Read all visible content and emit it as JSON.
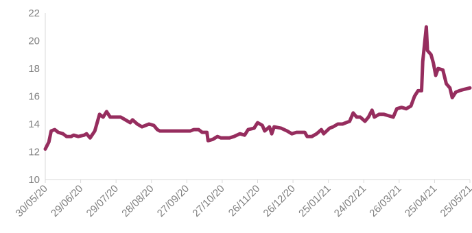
{
  "chart_data": {
    "type": "line",
    "x": [
      "30/05/20",
      "02/06/20",
      "04/06/20",
      "07/06/20",
      "10/06/20",
      "14/06/20",
      "17/06/20",
      "21/06/20",
      "23/06/20",
      "27/06/20",
      "02/07/20",
      "04/07/20",
      "07/07/20",
      "11/07/20",
      "15/07/20",
      "18/07/20",
      "21/07/20",
      "24/07/20",
      "28/07/20",
      "02/08/20",
      "06/08/20",
      "10/08/20",
      "12/08/20",
      "16/08/20",
      "20/08/20",
      "23/08/20",
      "26/08/20",
      "30/08/20",
      "02/09/20",
      "04/09/20",
      "20/09/20",
      "30/09/20",
      "03/10/20",
      "07/10/20",
      "10/10/20",
      "14/10/20",
      "15/10/20",
      "19/10/20",
      "23/10/20",
      "26/10/20",
      "02/11/20",
      "06/11/20",
      "11/11/20",
      "15/11/20",
      "18/11/20",
      "23/11/20",
      "26/11/20",
      "30/11/20",
      "02/12/20",
      "06/12/20",
      "08/12/20",
      "10/12/20",
      "16/12/20",
      "21/12/20",
      "25/12/20",
      "29/12/20",
      "05/01/21",
      "07/01/21",
      "11/01/21",
      "15/01/21",
      "19/01/21",
      "21/01/21",
      "26/01/21",
      "29/01/21",
      "02/02/21",
      "06/02/21",
      "12/02/21",
      "15/02/21",
      "18/02/21",
      "21/02/21",
      "25/02/21",
      "28/02/21",
      "03/03/21",
      "05/03/21",
      "09/03/21",
      "13/03/21",
      "17/03/21",
      "21/03/21",
      "24/03/21",
      "28/03/21",
      "01/04/21",
      "05/04/21",
      "08/04/21",
      "11/04/21",
      "14/04/21",
      "15/04/21",
      "18/04/21",
      "19/04/21",
      "22/04/21",
      "24/04/21",
      "26/04/21",
      "28/04/21",
      "02/05/21",
      "05/05/21",
      "08/05/21",
      "10/05/21",
      "13/05/21",
      "16/05/21",
      "20/05/21",
      "25/05/21"
    ],
    "series": [
      {
        "color": "#962d5e",
        "values": [
          12.2,
          12.7,
          13.5,
          13.6,
          13.4,
          13.3,
          13.1,
          13.1,
          13.2,
          13.1,
          13.2,
          13.3,
          13.0,
          13.5,
          14.7,
          14.5,
          14.9,
          14.5,
          14.5,
          14.5,
          14.3,
          14.1,
          14.3,
          14.0,
          13.8,
          13.9,
          14.0,
          13.9,
          13.6,
          13.5,
          13.5,
          13.5,
          13.6,
          13.6,
          13.4,
          13.4,
          12.8,
          12.9,
          13.1,
          13.0,
          13.0,
          13.1,
          13.3,
          13.2,
          13.6,
          13.7,
          14.1,
          13.9,
          13.5,
          13.8,
          13.3,
          13.8,
          13.7,
          13.5,
          13.3,
          13.4,
          13.4,
          13.1,
          13.1,
          13.3,
          13.6,
          13.3,
          13.7,
          13.8,
          14.0,
          14.0,
          14.2,
          14.8,
          14.5,
          14.5,
          14.2,
          14.5,
          15.0,
          14.5,
          14.7,
          14.7,
          14.6,
          14.5,
          15.1,
          15.2,
          15.1,
          15.3,
          16.0,
          16.4,
          16.4,
          18.5,
          21.0,
          19.3,
          19.0,
          18.4,
          17.5,
          18.0,
          17.9,
          16.9,
          16.6,
          15.9,
          16.3,
          16.4,
          16.5,
          16.6
        ]
      }
    ],
    "xlim": [
      "30/05/20",
      "25/05/21"
    ],
    "xticks": [
      "30/05/20",
      "29/06/20",
      "29/07/20",
      "28/08/20",
      "27/09/20",
      "27/10/20",
      "26/11/20",
      "26/12/20",
      "25/01/21",
      "24/02/21",
      "26/03/21",
      "25/04/21",
      "25/05/21"
    ],
    "ylim": [
      10,
      22
    ],
    "yticks": [
      10,
      12,
      14,
      16,
      18,
      20,
      22
    ]
  }
}
